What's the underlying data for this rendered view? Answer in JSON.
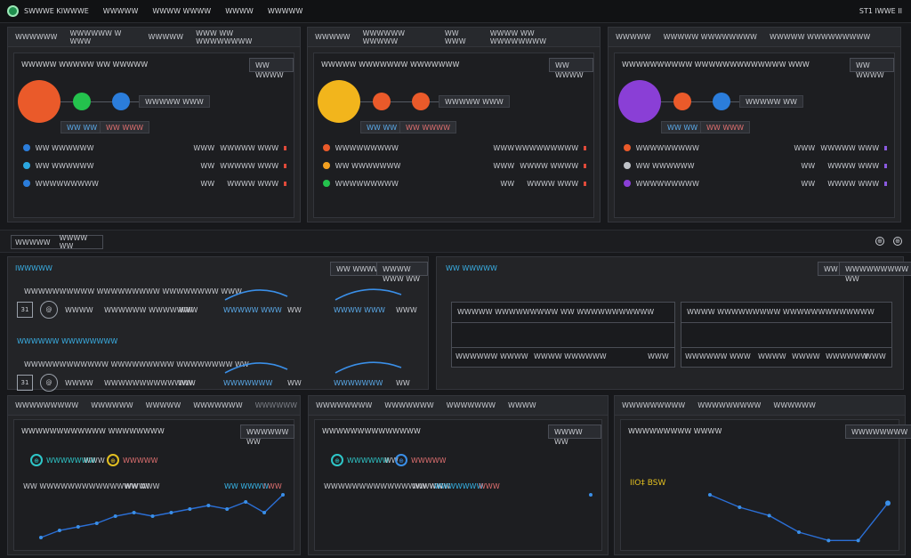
{
  "topbar": {
    "items": [
      "SWWWE KIWWWE",
      "WWWWW",
      "WWWW WWWW",
      "WWWW",
      "WWWWW"
    ],
    "right": "ST1 IWWE II"
  },
  "nodes_panels": [
    {
      "tabs": [
        "WWWWWW",
        "WWWWWW W WWW",
        "WWWWW",
        "WWW WW WWWWWWWW"
      ],
      "title": "WWWWW WWWWW WW WWWWW",
      "button": "WW WWWW",
      "colors": [
        "#ea5a2a",
        "#24c24d",
        "#2b7ddb"
      ],
      "chip": "WWWWW WWW",
      "pill_a": "WW WW",
      "pill_b": "WW WWW",
      "rows": [
        {
          "dot": "#2b7ddb",
          "name": "WW WWWWWW",
          "v1": "WWW",
          "v2": "WWWWW WWW",
          "mark": "#e04a3a"
        },
        {
          "dot": "#2ba7e0",
          "name": "WW WWWWWW",
          "v1": "WW",
          "v2": "WWWWW WWW",
          "mark": "#e04a3a"
        },
        {
          "dot": "#2b7ddb",
          "name": "WWWWWWWWW",
          "v1": "WW",
          "v2": "WWWW WWW",
          "mark": "#e04a3a"
        }
      ]
    },
    {
      "tabs": [
        "WWWWW",
        "WWWWWW WWWWW",
        "WW WWW",
        "WWWW WW WWWWWWWW"
      ],
      "title": "WWWWW WWWWWWW WWWWWWW",
      "button": "WW WWWW",
      "colors": [
        "#f2b51c",
        "#ea5a2a",
        "#ea5a2a"
      ],
      "chip": "WWWWW WWW",
      "pill_a": "WW WW",
      "pill_b": "WW WWWW",
      "rows": [
        {
          "dot": "#ea5a2a",
          "name": "WWWWWWWWW",
          "v1": "WWW",
          "v2": "WWWWWWWWW",
          "mark": "#e04a3a"
        },
        {
          "dot": "#f2a020",
          "name": "WW WWWWWWW",
          "v1": "WWW",
          "v2": "WWWW WWWW",
          "mark": "#e04a3a"
        },
        {
          "dot": "#24c24d",
          "name": "WWWWWWWWW",
          "v1": "WW",
          "v2": "WWWW WWW",
          "mark": "#e04a3a"
        }
      ]
    },
    {
      "tabs": [
        "WWWWW",
        "WWWWW WWWWWWWW",
        "WWWWW WWWWWWWWW"
      ],
      "title": "WWWWWWWWWW WWWWWWWWWWWWW WWW",
      "button": "WW WWWW",
      "colors": [
        "#8a3fd6",
        "#ea5a2a",
        "#2b7ddb"
      ],
      "chip": "WWWWW WW",
      "pill_a": "WW WW",
      "pill_b": "WW WWW",
      "rows": [
        {
          "dot": "#ea5a2a",
          "name": "WWWWWWWWW",
          "v1": "WWW",
          "v2": "WWWWW WWW",
          "mark": "#8a5ae0"
        },
        {
          "dot": "#bfc2c8",
          "name": "WW WWWWWW",
          "v1": "WW",
          "v2": "WWWW WWW",
          "mark": "#8a5ae0"
        },
        {
          "dot": "#8a3fd6",
          "name": "WWWWWWWWW",
          "v1": "WW",
          "v2": "WWWW WWW",
          "mark": "#8a5ae0"
        }
      ]
    }
  ],
  "tabstrip": {
    "tab_a": "WWWWW",
    "tab_b": "WWWW WW",
    "icon_a": "⊕",
    "icon_b": "⊕"
  },
  "flows_panel": {
    "title": "IWWWWW",
    "btn_a": "WW WWWW",
    "btn_b": "WWWW WWW WW",
    "sections": [
      {
        "caption": "WWWWWWWWWW WWWWWWWWW WWWWWWWW WWW",
        "sq": "31",
        "rc": "@",
        "l1": "WWWW",
        "l2": "WWWWWW WWWWWWW",
        "v1": "WW",
        "s1": "WWWWW WWW",
        "s1v": "WW",
        "s2": "WWWW WWW",
        "s2v": "WWW"
      },
      {
        "caption": "WWWWWWWWWWWW WWWWWWWWW WWWWWWWW WW",
        "sq": "31",
        "rc": "@",
        "l1": "WWWW",
        "l2": "WWWWWWWWWWWWW",
        "v1": "WW",
        "s1": "WWWWWWW",
        "s1v": "WW",
        "s2": "WWWWWWW",
        "s2v": "WW"
      }
    ],
    "section2_title": "WWWWWW WWWWWWWW"
  },
  "table_panel": {
    "title": "WW WWWWW",
    "btn_a": "WW",
    "btn_b": "WWWWWWWWW WW",
    "tables": [
      {
        "header": "WWWWW WWWWWWWWW WW WWWWWWWWWWW",
        "cells": [
          "WWWWWW",
          "WWWW",
          "WWWW WWWWWW"
        ],
        "end": "WWW"
      },
      {
        "header": "WWWW WWWWWWWWW WWWWWWWWWWWWW",
        "cells": [
          "WWWWWW",
          "WWW",
          "WWWW",
          "WWWW",
          "WWWWWW"
        ],
        "end": "WWW"
      }
    ]
  },
  "charts": [
    {
      "tabs": [
        "WWWWWWWWW",
        "WWWWWW",
        "WWWWW",
        "WWWWWWW"
      ],
      "tab_right": "WWWWWW",
      "title": "WWWWWWWWWWWW WWWWWWWW",
      "button": "WWWWWW WW",
      "token_a": "⊕",
      "token_a_label": "WWWWWWW",
      "token_a_val": "WWW",
      "token_b": "⊕",
      "token_b_label": "WWWWW",
      "legend_left": "WW WWWWWWWWWWWWWW WI",
      "legend_mid": "WWWWW",
      "legend_right": "WW WWWW",
      "legend_right2": "I WW",
      "chart_data": {
        "type": "line",
        "values": [
          2,
          4,
          5,
          6,
          8,
          9,
          8,
          9,
          10,
          11,
          10,
          12,
          9,
          14
        ]
      }
    },
    {
      "tabs": [
        "WWWWWWWW",
        "WWWWWWW",
        "WWWWWWW",
        "WWWW"
      ],
      "title": "WWWWWWWWWWWWWW",
      "button": "WWWW WW",
      "token_a": "⊕",
      "token_a_label": "WWWWWW",
      "token_a_val": "WW",
      "token_b": "⊕",
      "token_b_label": "WWWWW",
      "legend_left": "WWWWWWWWWWWWWWWWWW",
      "legend_mid": "WW WW",
      "legend_right": "WWWWWWW",
      "legend_right2": "WWW",
      "chart_data": {
        "type": "line",
        "values": [
          0,
          0,
          0,
          0,
          0,
          0,
          0,
          0,
          0,
          0,
          0,
          0,
          0,
          1
        ]
      }
    },
    {
      "tabs": [
        "WWWWWWWWW",
        "WWWWWWWWW",
        "WWWWWW"
      ],
      "title": "WWWWWWWWW WWWW",
      "button": "WWWWWWWW",
      "tag": "IIO‡ BSW",
      "chart_data": {
        "type": "line",
        "values": [
          12,
          9,
          7,
          3,
          1,
          1,
          10
        ]
      }
    }
  ]
}
